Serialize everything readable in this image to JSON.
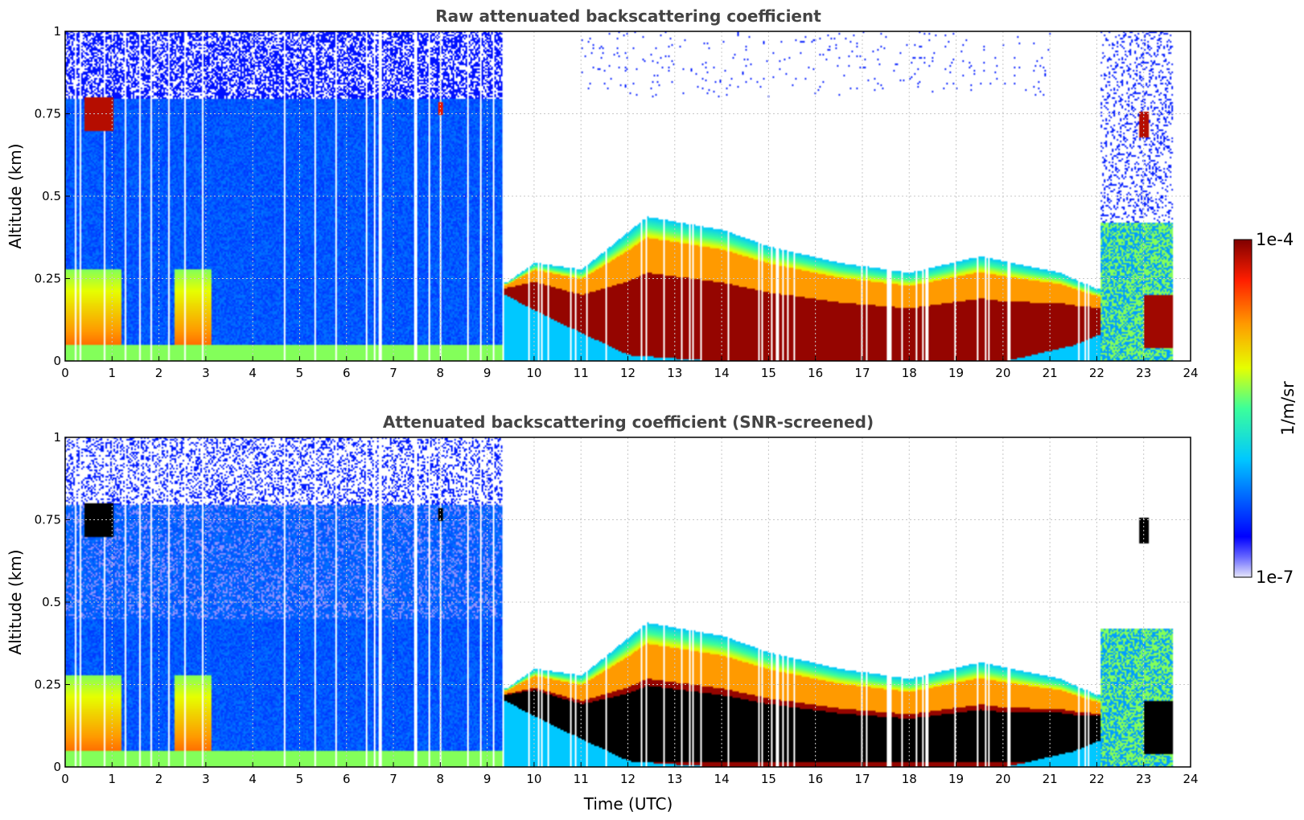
{
  "chart_data": [
    {
      "type": "heatmap",
      "title": "Raw attenuated backscattering coefficient",
      "ylabel": "Altitude (km)",
      "xlabel": "",
      "xlim": [
        0,
        24
      ],
      "ylim": [
        0,
        1
      ],
      "x_ticks": [
        "0",
        "1",
        "2",
        "3",
        "4",
        "5",
        "6",
        "7",
        "8",
        "9",
        "10",
        "11",
        "12",
        "13",
        "14",
        "15",
        "16",
        "17",
        "18",
        "19",
        "20",
        "21",
        "22",
        "23",
        "24"
      ],
      "y_ticks": [
        "0",
        "0.25",
        "0.5",
        "0.75",
        "1"
      ],
      "grid": true,
      "screened": false,
      "cloud_top_km": [
        {
          "t": 9.4,
          "h": 0.24
        },
        {
          "t": 10.0,
          "h": 0.3
        },
        {
          "t": 11.0,
          "h": 0.28
        },
        {
          "t": 12.4,
          "h": 0.44
        },
        {
          "t": 14.0,
          "h": 0.4
        },
        {
          "t": 15.0,
          "h": 0.35
        },
        {
          "t": 16.5,
          "h": 0.3
        },
        {
          "t": 18.0,
          "h": 0.27
        },
        {
          "t": 19.5,
          "h": 0.32
        },
        {
          "t": 20.5,
          "h": 0.29
        },
        {
          "t": 21.2,
          "h": 0.27
        },
        {
          "t": 22.0,
          "h": 0.22
        }
      ],
      "cloud_base_km": [
        {
          "t": 9.4,
          "h": 0.2
        },
        {
          "t": 10.5,
          "h": 0.12
        },
        {
          "t": 12.0,
          "h": 0.02
        },
        {
          "t": 14.0,
          "h": 0.0
        },
        {
          "t": 20.0,
          "h": 0.0
        },
        {
          "t": 21.5,
          "h": 0.05
        },
        {
          "t": 22.0,
          "h": 0.08
        }
      ],
      "features": [
        {
          "t0": 0.4,
          "t1": 1.0,
          "h0": 0.7,
          "h1": 0.8,
          "level": 0.95
        },
        {
          "t0": 7.95,
          "t1": 8.05,
          "h0": 0.75,
          "h1": 0.79,
          "level": 0.9
        },
        {
          "t0": 22.9,
          "t1": 23.1,
          "h0": 0.68,
          "h1": 0.76,
          "level": 0.95
        },
        {
          "t0": 23.0,
          "t1": 23.6,
          "h0": 0.04,
          "h1": 0.2,
          "level": 0.97
        }
      ]
    },
    {
      "type": "heatmap",
      "title": "Attenuated backscattering coefficient (SNR-screened)",
      "ylabel": "Altitude (km)",
      "xlabel": "Time (UTC)",
      "xlim": [
        0,
        24
      ],
      "ylim": [
        0,
        1
      ],
      "x_ticks": [
        "0",
        "1",
        "2",
        "3",
        "4",
        "5",
        "6",
        "7",
        "8",
        "9",
        "10",
        "11",
        "12",
        "13",
        "14",
        "15",
        "16",
        "17",
        "18",
        "19",
        "20",
        "21",
        "22",
        "23",
        "24"
      ],
      "y_ticks": [
        "0",
        "0.25",
        "0.5",
        "0.75",
        "1"
      ],
      "grid": true,
      "screened": true,
      "screened_color": "#000000"
    }
  ],
  "colorbar": {
    "label": "1/m/sr",
    "max_label": "1e-4",
    "min_label": "1e-7",
    "scale": "log",
    "range": [
      1e-07,
      0.0001
    ],
    "colormap": "jet"
  }
}
